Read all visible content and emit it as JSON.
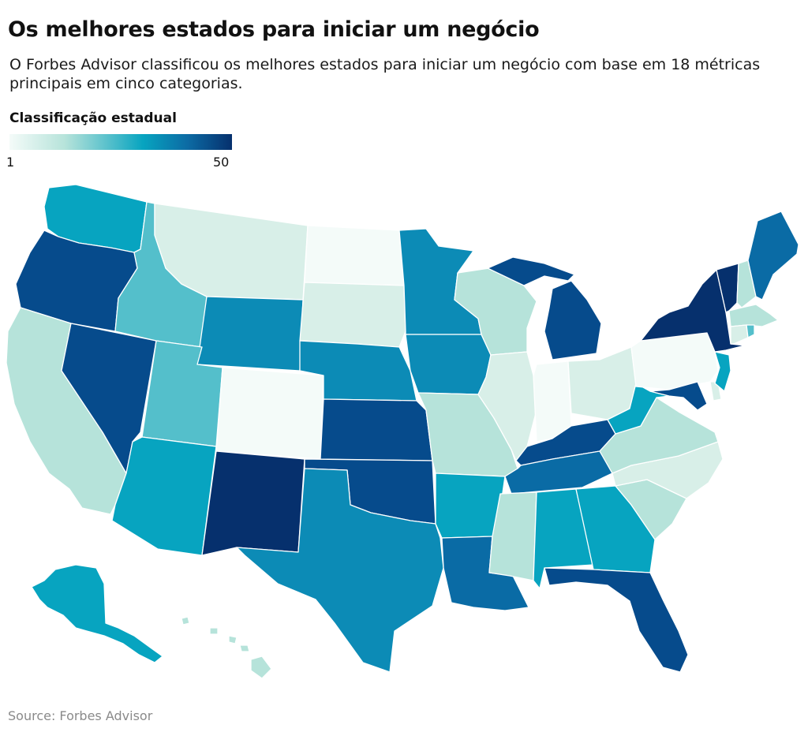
{
  "header": {
    "title": "Os melhores estados para iniciar um negócio",
    "subtitle": "O Forbes Advisor classificou os melhores estados para iniciar um negócio com base em 18 métricas principais em cinco categorias."
  },
  "legend": {
    "title": "Classificação estadual",
    "min_label": "1",
    "max_label": "50",
    "color_low": "#f4fbf9",
    "color_high": "#06306d"
  },
  "footer": {
    "source": "Source: Forbes Advisor"
  },
  "map": {
    "type": "choropleth",
    "region": "United States",
    "scale_colors": {
      "c1": "#f4fbf9",
      "c2": "#d8efe8",
      "c3": "#b6e3da",
      "c4": "#54bfcb",
      "c5": "#07a4c0",
      "c6": "#0c8bb6",
      "c7": "#0a6ba5",
      "c8": "#064b8c",
      "c9": "#06306d"
    },
    "states": [
      {
        "id": "WA",
        "color": "c5"
      },
      {
        "id": "OR",
        "color": "c8"
      },
      {
        "id": "CA",
        "color": "c3"
      },
      {
        "id": "NV",
        "color": "c8"
      },
      {
        "id": "ID",
        "color": "c4"
      },
      {
        "id": "MT",
        "color": "c2"
      },
      {
        "id": "WY",
        "color": "c6"
      },
      {
        "id": "UT",
        "color": "c4"
      },
      {
        "id": "AZ",
        "color": "c5"
      },
      {
        "id": "CO",
        "color": "c1"
      },
      {
        "id": "NM",
        "color": "c9"
      },
      {
        "id": "ND",
        "color": "c1"
      },
      {
        "id": "SD",
        "color": "c2"
      },
      {
        "id": "NE",
        "color": "c6"
      },
      {
        "id": "KS",
        "color": "c8"
      },
      {
        "id": "OK",
        "color": "c8"
      },
      {
        "id": "TX",
        "color": "c6"
      },
      {
        "id": "MN",
        "color": "c6"
      },
      {
        "id": "IA",
        "color": "c6"
      },
      {
        "id": "MO",
        "color": "c3"
      },
      {
        "id": "AR",
        "color": "c5"
      },
      {
        "id": "LA",
        "color": "c7"
      },
      {
        "id": "WI",
        "color": "c3"
      },
      {
        "id": "IL",
        "color": "c2"
      },
      {
        "id": "MI",
        "color": "c8"
      },
      {
        "id": "MI-UP",
        "color": "c8"
      },
      {
        "id": "IN",
        "color": "c1"
      },
      {
        "id": "OH",
        "color": "c2"
      },
      {
        "id": "KY",
        "color": "c8"
      },
      {
        "id": "TN",
        "color": "c7"
      },
      {
        "id": "MS",
        "color": "c3"
      },
      {
        "id": "AL",
        "color": "c5"
      },
      {
        "id": "GA",
        "color": "c5"
      },
      {
        "id": "FL",
        "color": "c8"
      },
      {
        "id": "SC",
        "color": "c3"
      },
      {
        "id": "NC",
        "color": "c2"
      },
      {
        "id": "VA",
        "color": "c3"
      },
      {
        "id": "WV",
        "color": "c5"
      },
      {
        "id": "PA",
        "color": "c1"
      },
      {
        "id": "NY",
        "color": "c9"
      },
      {
        "id": "VT",
        "color": "c9"
      },
      {
        "id": "NH",
        "color": "c3"
      },
      {
        "id": "ME",
        "color": "c7"
      },
      {
        "id": "MA",
        "color": "c3"
      },
      {
        "id": "CT",
        "color": "c2"
      },
      {
        "id": "RI",
        "color": "c4"
      },
      {
        "id": "NJ",
        "color": "c5"
      },
      {
        "id": "DE",
        "color": "c2"
      },
      {
        "id": "MD",
        "color": "c8"
      },
      {
        "id": "AK",
        "color": "c5"
      },
      {
        "id": "HI",
        "color": "c3"
      }
    ]
  }
}
